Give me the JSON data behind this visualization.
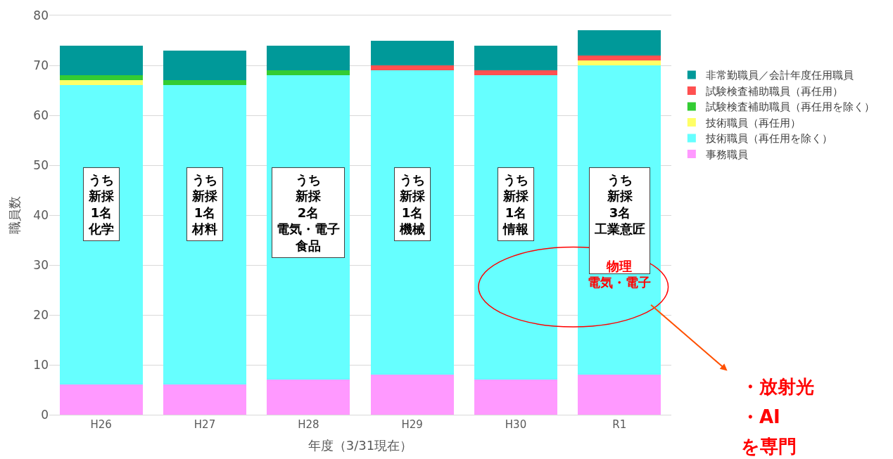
{
  "chart_data": {
    "type": "bar",
    "stacked": true,
    "xlabel": "年度（3/31現在）",
    "ylabel": "職員数",
    "categories": [
      "H26",
      "H27",
      "H28",
      "H29",
      "H30",
      "R1"
    ],
    "series": [
      {
        "name": "事務職員",
        "color": "#ff99ff",
        "values": [
          6,
          6,
          7,
          8,
          7,
          8
        ]
      },
      {
        "name": "技術職員（再任用を除く）",
        "color": "#66ffff",
        "values": [
          60,
          60,
          61,
          61,
          61,
          62
        ]
      },
      {
        "name": "技術職員（再任用）",
        "color": "#ffff66",
        "values": [
          1,
          0,
          0,
          0,
          0,
          1
        ]
      },
      {
        "name": "試験検査補助職員（再任用を除く）",
        "color": "#33cc33",
        "values": [
          1,
          1,
          1,
          0,
          0,
          0
        ]
      },
      {
        "name": "試験検査補助職員（再任用）",
        "color": "#ff5050",
        "values": [
          0,
          0,
          0,
          1,
          1,
          1
        ]
      },
      {
        "name": "非常勤職員／会計年度任用職員",
        "color": "#009999",
        "values": [
          6,
          6,
          5,
          5,
          5,
          5
        ]
      }
    ],
    "ylim": [
      0,
      80
    ],
    "yticks": [
      0,
      10,
      20,
      30,
      40,
      50,
      60,
      70,
      80
    ],
    "grid": "y",
    "legend": "right",
    "annotations": [
      "うち新採1名化学",
      "うち新採1名材料",
      "うち新採2名電気・電子食品",
      "うち新採1名機械",
      "うち新採1名情報",
      "うち新採3名工業意匠",
      "物理電気・電子",
      "・放射光",
      "・AI",
      "を専門"
    ]
  }
}
